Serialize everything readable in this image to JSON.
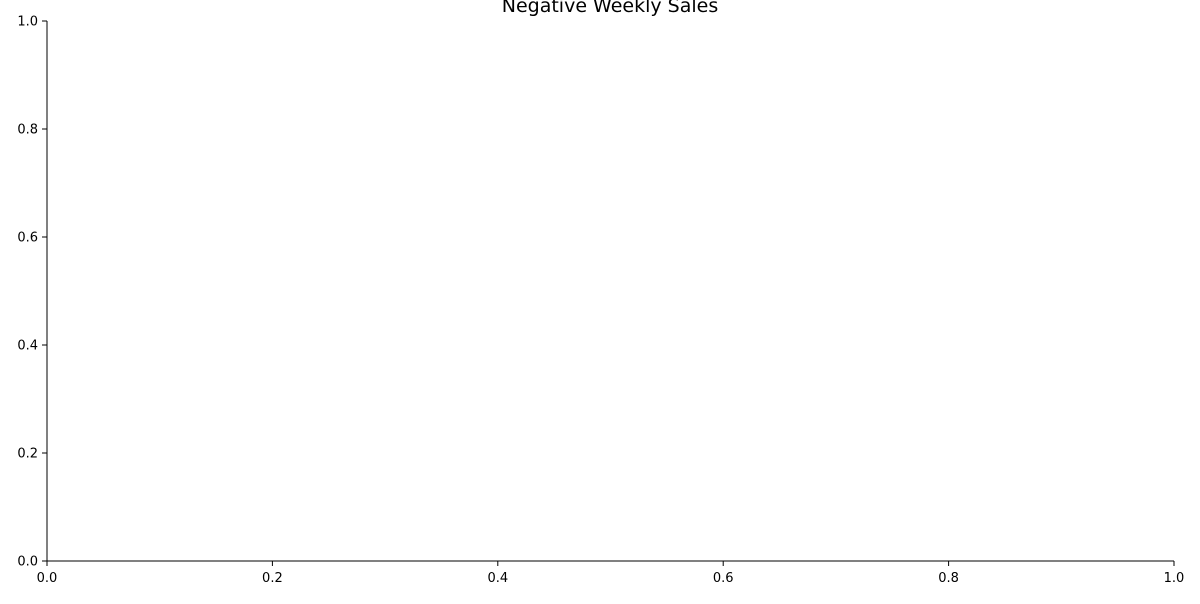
{
  "chart_data": {
    "type": "line",
    "title": "Negative Weekly Sales",
    "xlabel": "",
    "ylabel": "",
    "xlim": [
      0.0,
      1.0
    ],
    "ylim": [
      0.0,
      1.0
    ],
    "x_ticks": [
      "0.0",
      "0.2",
      "0.4",
      "0.6",
      "0.8",
      "1.0"
    ],
    "y_ticks": [
      "0.0",
      "0.2",
      "0.4",
      "0.6",
      "0.8",
      "1.0"
    ],
    "grid": false,
    "legend": "none",
    "series": []
  }
}
